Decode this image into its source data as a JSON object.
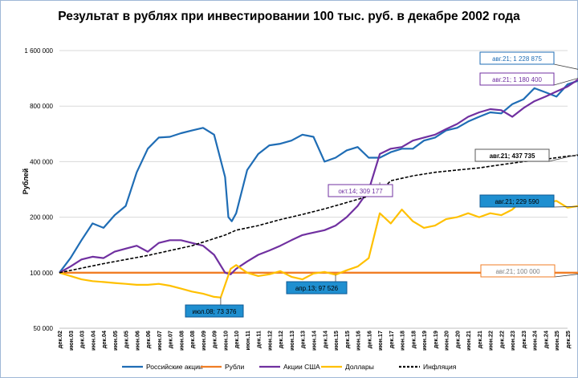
{
  "chart_data": {
    "type": "line",
    "title": "Результат в рублях при инвестировании 100 тыс. руб. в декабре 2002 года",
    "xlabel": "",
    "ylabel": "Рублей",
    "y_scale": "log",
    "ylim": [
      50000,
      1600000
    ],
    "y_ticks": [
      {
        "value": 50000,
        "label": "50 000"
      },
      {
        "value": 100000,
        "label": "100 000"
      },
      {
        "value": 200000,
        "label": "200 000"
      },
      {
        "value": 400000,
        "label": "400 000"
      },
      {
        "value": 800000,
        "label": "800 000"
      },
      {
        "value": 1600000,
        "label": "1 600 000"
      }
    ],
    "x_tick_labels": [
      "дек.02",
      "июн.03",
      "дек.03",
      "июн.04",
      "дек.04",
      "июн.05",
      "дек.05",
      "июн.06",
      "дек.06",
      "июн.07",
      "дек.07",
      "июн.08",
      "дек.08",
      "июн.09",
      "дек.09",
      "июн.10",
      "дек.10",
      "июн.11",
      "дек.11",
      "июн.12",
      "дек.12",
      "июн.13",
      "дек.13",
      "июн.14",
      "дек.14",
      "июн.15",
      "дек.15",
      "июн.16",
      "дек.16",
      "июн.17",
      "дек.17",
      "июн.18",
      "дек.18",
      "июн.19",
      "дек.19",
      "июн.20",
      "дек.20",
      "июн.21",
      "дек.21",
      "июн.22",
      "дек.22",
      "июн.23",
      "дек.23",
      "июн.24",
      "дек.24",
      "июн.25",
      "дек.25"
    ],
    "series": [
      {
        "name": "Российские акции",
        "color": "#1f6db5",
        "width": 2.2,
        "points": [
          [
            0,
            100000
          ],
          [
            1,
            120000
          ],
          [
            2,
            150000
          ],
          [
            3,
            185000
          ],
          [
            4,
            175000
          ],
          [
            5,
            205000
          ],
          [
            6,
            230000
          ],
          [
            7,
            350000
          ],
          [
            8,
            470000
          ],
          [
            9,
            540000
          ],
          [
            10,
            545000
          ],
          [
            11,
            570000
          ],
          [
            12,
            590000
          ],
          [
            13,
            610000
          ],
          [
            14,
            560000
          ],
          [
            15,
            330000
          ],
          [
            15.3,
            200000
          ],
          [
            15.6,
            190000
          ],
          [
            16,
            210000
          ],
          [
            17,
            360000
          ],
          [
            18,
            440000
          ],
          [
            19,
            490000
          ],
          [
            20,
            500000
          ],
          [
            21,
            520000
          ],
          [
            22,
            560000
          ],
          [
            23,
            545000
          ],
          [
            24,
            400000
          ],
          [
            25,
            420000
          ],
          [
            26,
            460000
          ],
          [
            27,
            480000
          ],
          [
            28,
            420000
          ],
          [
            29,
            420000
          ],
          [
            30,
            450000
          ],
          [
            31,
            470000
          ],
          [
            32,
            470000
          ],
          [
            33,
            520000
          ],
          [
            34,
            540000
          ],
          [
            35,
            590000
          ],
          [
            36,
            610000
          ],
          [
            37,
            660000
          ],
          [
            38,
            700000
          ],
          [
            39,
            740000
          ],
          [
            40,
            730000
          ],
          [
            41,
            820000
          ],
          [
            42,
            870000
          ],
          [
            43,
            1000000
          ],
          [
            44,
            950000
          ],
          [
            45,
            900000
          ],
          [
            46,
            1050000
          ],
          [
            47,
            1100000
          ],
          [
            48,
            1228875
          ]
        ]
      },
      {
        "name": "Рубли",
        "color": "#f07d24",
        "width": 2.4,
        "points": [
          [
            0,
            100000
          ],
          [
            48,
            100000
          ]
        ]
      },
      {
        "name": "Акции США",
        "color": "#7030a0",
        "width": 2.2,
        "points": [
          [
            0,
            100000
          ],
          [
            1,
            108000
          ],
          [
            2,
            118000
          ],
          [
            3,
            122000
          ],
          [
            4,
            120000
          ],
          [
            5,
            130000
          ],
          [
            6,
            135000
          ],
          [
            7,
            140000
          ],
          [
            8,
            130000
          ],
          [
            9,
            145000
          ],
          [
            10,
            150000
          ],
          [
            11,
            150000
          ],
          [
            12,
            145000
          ],
          [
            13,
            140000
          ],
          [
            14,
            125000
          ],
          [
            15,
            100000
          ],
          [
            15.5,
            98000
          ],
          [
            16,
            105000
          ],
          [
            17,
            115000
          ],
          [
            18,
            125000
          ],
          [
            19,
            132000
          ],
          [
            20,
            140000
          ],
          [
            21,
            150000
          ],
          [
            22,
            160000
          ],
          [
            23,
            165000
          ],
          [
            24,
            170000
          ],
          [
            25,
            180000
          ],
          [
            26,
            200000
          ],
          [
            27,
            230000
          ],
          [
            28,
            280000
          ],
          [
            29,
            440000
          ],
          [
            30,
            470000
          ],
          [
            31,
            480000
          ],
          [
            32,
            520000
          ],
          [
            33,
            540000
          ],
          [
            34,
            560000
          ],
          [
            35,
            600000
          ],
          [
            36,
            640000
          ],
          [
            37,
            700000
          ],
          [
            38,
            740000
          ],
          [
            39,
            770000
          ],
          [
            40,
            760000
          ],
          [
            41,
            700000
          ],
          [
            42,
            780000
          ],
          [
            43,
            850000
          ],
          [
            44,
            900000
          ],
          [
            45,
            960000
          ],
          [
            46,
            1020000
          ],
          [
            47,
            1120000
          ],
          [
            48,
            1180400
          ]
        ]
      },
      {
        "name": "Доллары",
        "color": "#ffc000",
        "width": 2.2,
        "points": [
          [
            0,
            100000
          ],
          [
            1,
            96000
          ],
          [
            2,
            92000
          ],
          [
            3,
            90000
          ],
          [
            4,
            89000
          ],
          [
            5,
            88000
          ],
          [
            6,
            87000
          ],
          [
            7,
            86000
          ],
          [
            8,
            86000
          ],
          [
            9,
            87000
          ],
          [
            10,
            85000
          ],
          [
            11,
            82000
          ],
          [
            12,
            79000
          ],
          [
            13,
            77000
          ],
          [
            14,
            74000
          ],
          [
            14.6,
            73376
          ],
          [
            15,
            86000
          ],
          [
            15.5,
            105000
          ],
          [
            16,
            110000
          ],
          [
            17,
            100000
          ],
          [
            18,
            96000
          ],
          [
            19,
            98000
          ],
          [
            20,
            102000
          ],
          [
            21,
            95000
          ],
          [
            22,
            92000
          ],
          [
            23,
            99000
          ],
          [
            24,
            101000
          ],
          [
            25,
            97526
          ],
          [
            26,
            103000
          ],
          [
            27,
            108000
          ],
          [
            28,
            120000
          ],
          [
            29,
            210000
          ],
          [
            30,
            185000
          ],
          [
            31,
            220000
          ],
          [
            32,
            190000
          ],
          [
            33,
            175000
          ],
          [
            34,
            180000
          ],
          [
            35,
            195000
          ],
          [
            36,
            200000
          ],
          [
            37,
            210000
          ],
          [
            38,
            200000
          ],
          [
            39,
            210000
          ],
          [
            40,
            205000
          ],
          [
            41,
            220000
          ],
          [
            42,
            250000
          ],
          [
            43,
            230000
          ],
          [
            44,
            240000
          ],
          [
            45,
            245000
          ],
          [
            46,
            225000
          ],
          [
            47,
            230000
          ],
          [
            48,
            229590
          ]
        ]
      },
      {
        "name": "Инфляция",
        "color": "#000000",
        "width": 1.6,
        "dashed": true,
        "points": [
          [
            0,
            100000
          ],
          [
            4,
            112000
          ],
          [
            8,
            124000
          ],
          [
            12,
            140000
          ],
          [
            15,
            160000
          ],
          [
            16,
            170000
          ],
          [
            18,
            180000
          ],
          [
            20,
            194000
          ],
          [
            22,
            207000
          ],
          [
            24,
            222000
          ],
          [
            26,
            240000
          ],
          [
            28,
            260000
          ],
          [
            29,
            275000
          ],
          [
            30,
            315000
          ],
          [
            32,
            335000
          ],
          [
            34,
            350000
          ],
          [
            36,
            360000
          ],
          [
            38,
            370000
          ],
          [
            40,
            385000
          ],
          [
            42,
            400000
          ],
          [
            44,
            412000
          ],
          [
            46,
            428000
          ],
          [
            48,
            437735
          ]
        ]
      }
    ],
    "annotations": [
      {
        "text": "авг.21; 1 228 875",
        "style": "boxed-blue"
      },
      {
        "text": "авг.21; 1 180 400",
        "style": "plain-purple"
      },
      {
        "text": "авг.21; 437 735",
        "style": "plain-dark"
      },
      {
        "text": "окт.14; 309 177",
        "style": "plain-purple"
      },
      {
        "text": "авг.21;  229 590",
        "style": "filled-blue"
      },
      {
        "text": "авг.21;  100 000",
        "style": "plain-orange"
      },
      {
        "text": "июл.08;  73 376",
        "style": "filled-blue"
      },
      {
        "text": "апр.13;  97 526",
        "style": "filled-blue"
      }
    ],
    "legend_position": "bottom",
    "grid": "horizontal"
  }
}
